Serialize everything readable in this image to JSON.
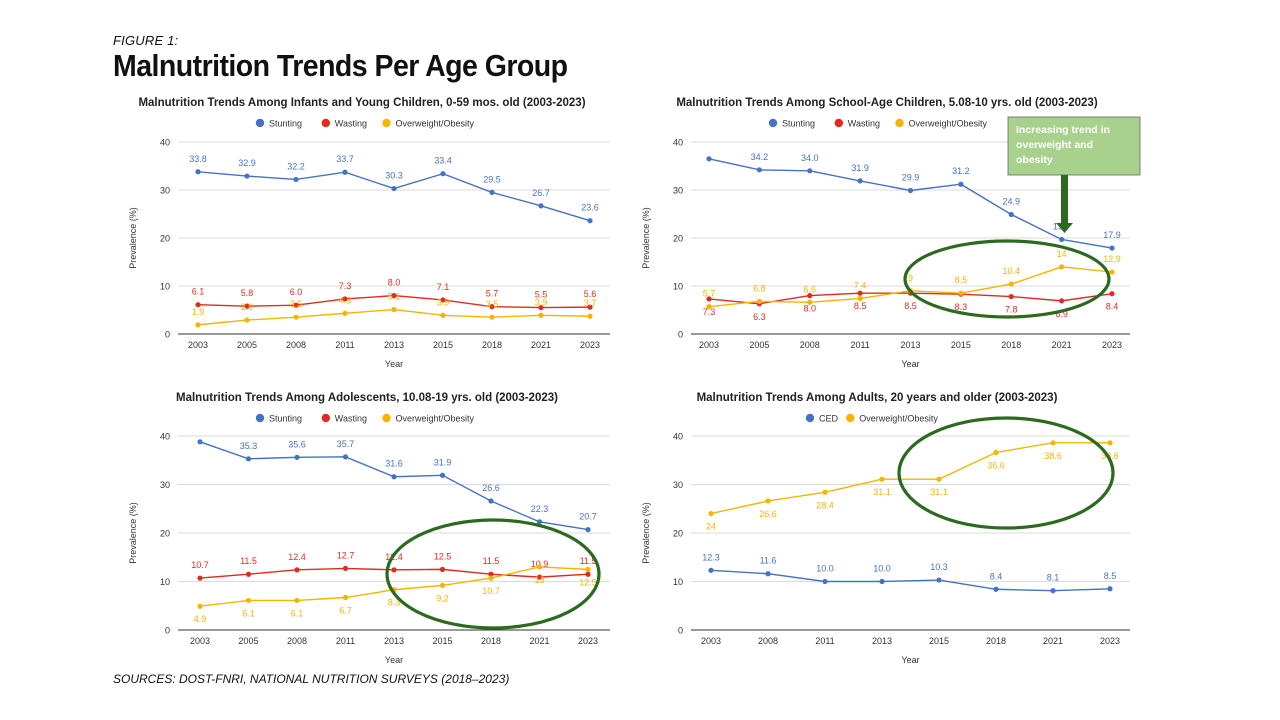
{
  "figure": {
    "label": "FIGURE 1:",
    "title": "Malnutrition Trends Per Age Group",
    "sources": "SOURCES: DOST-FNRI, NATIONAL NUTRITION SURVEYS (2018–2023)"
  },
  "colors": {
    "blue": "#4472c4",
    "red": "#e02b20",
    "yellow": "#f5b400",
    "green": "#2d6a1f",
    "callout_bg": "#a9d18e"
  },
  "chart_data": [
    {
      "type": "line",
      "title": "Malnutrition Trends Among Infants and Young Children, 0-59 mos. old (2003-2023)",
      "xlabel": "Year",
      "ylabel": "Prevalence (%)",
      "categories": [
        "2003",
        "2005",
        "2008",
        "2011",
        "2013",
        "2015",
        "2018",
        "2021",
        "2023"
      ],
      "ylim": [
        0,
        40
      ],
      "yticks": [
        "0",
        "10",
        "20",
        "30",
        "40"
      ],
      "grid": true,
      "legend": "top-center",
      "series": [
        {
          "name": "Stunting",
          "color": "#4472c4",
          "values": [
            33.8,
            32.9,
            32.2,
            33.7,
            30.3,
            33.4,
            29.5,
            26.7,
            23.6
          ],
          "labels": [
            "33.8",
            "32.9",
            "32.2",
            "33.7",
            "30.3",
            "33.4",
            "29.5",
            "26.7",
            "23.6"
          ],
          "label_pos": "above"
        },
        {
          "name": "Wasting",
          "color": "#e02b20",
          "values": [
            6.1,
            5.8,
            6.0,
            7.3,
            8.0,
            7.1,
            5.7,
            5.5,
            5.6
          ],
          "labels": [
            "6.1",
            "5.8",
            "6.0",
            "7.3",
            "8.0",
            "7.1",
            "5.7",
            "5.5",
            "5.6"
          ],
          "label_pos": "above"
        },
        {
          "name": "Overweight/Obesity",
          "color": "#f5b400",
          "values": [
            1.9,
            2.9,
            3.5,
            4.3,
            5.1,
            3.9,
            3.5,
            3.9,
            3.7
          ],
          "labels": [
            "1.9",
            "2.9",
            "3.5",
            "4.3",
            "5.1",
            "3.9",
            "3.5",
            "3.9",
            "3.7"
          ],
          "label_pos": "above"
        }
      ]
    },
    {
      "type": "line",
      "title": "Malnutrition Trends Among School-Age Children, 5.08-10 yrs. old (2003-2023)",
      "xlabel": "Year",
      "ylabel": "Prevalence (%)",
      "categories": [
        "2003",
        "2005",
        "2008",
        "2011",
        "2013",
        "2015",
        "2018",
        "2021",
        "2023"
      ],
      "ylim": [
        0,
        40
      ],
      "yticks": [
        "0",
        "10",
        "20",
        "30",
        "40"
      ],
      "grid": true,
      "legend": "top-center",
      "callout": "Increasing trend in overweight and obesity",
      "series": [
        {
          "name": "Stunting",
          "color": "#4472c4",
          "values": [
            36.5,
            34.2,
            34.0,
            31.9,
            29.9,
            31.2,
            24.9,
            19.7,
            17.9
          ],
          "labels": [
            "",
            "34.2",
            "34.0",
            "31.9",
            "29.9",
            "31.2",
            "24.9",
            "19.7",
            "17.9"
          ],
          "label_pos": "above"
        },
        {
          "name": "Wasting",
          "color": "#e02b20",
          "values": [
            7.3,
            6.3,
            8.0,
            8.5,
            8.5,
            8.3,
            7.8,
            6.9,
            8.4
          ],
          "labels": [
            "7.3",
            "6.3",
            "8.0",
            "8.5",
            "8.5",
            "8.3",
            "7.8",
            "6.9",
            "8.4"
          ],
          "label_pos": "below"
        },
        {
          "name": "Overweight/Obesity",
          "color": "#f5b400",
          "values": [
            5.7,
            6.8,
            6.6,
            7.4,
            9,
            8.5,
            10.4,
            14,
            12.9
          ],
          "labels": [
            "5.7",
            "6.8",
            "6.6",
            "7.4",
            "9",
            "8.5",
            "10.4",
            "14",
            "12.9"
          ],
          "label_pos": "above"
        }
      ]
    },
    {
      "type": "line",
      "title": "Malnutrition Trends Among Adolescents, 10.08-19 yrs. old (2003-2023)",
      "xlabel": "Year",
      "ylabel": "Prevalence (%)",
      "categories": [
        "2003",
        "2005",
        "2008",
        "2011",
        "2013",
        "2015",
        "2018",
        "2021",
        "2023"
      ],
      "ylim": [
        0,
        40
      ],
      "yticks": [
        "0",
        "10",
        "20",
        "30",
        "40"
      ],
      "grid": true,
      "legend": "top-center",
      "series": [
        {
          "name": "Stunting",
          "color": "#4472c4",
          "values": [
            38.8,
            35.3,
            35.6,
            35.7,
            31.6,
            31.9,
            26.6,
            22.3,
            20.7
          ],
          "labels": [
            "",
            "35.3",
            "35.6",
            "35.7",
            "31.6",
            "31.9",
            "26.6",
            "22.3",
            "20.7"
          ],
          "label_pos": "above"
        },
        {
          "name": "Wasting",
          "color": "#e02b20",
          "values": [
            10.7,
            11.5,
            12.4,
            12.7,
            12.4,
            12.5,
            11.5,
            10.9,
            11.5
          ],
          "labels": [
            "10.7",
            "11.5",
            "12.4",
            "12.7",
            "12.4",
            "12.5",
            "11.5",
            "10.9",
            "11.5"
          ],
          "label_pos": "above"
        },
        {
          "name": "Overweight/Obesity",
          "color": "#f5b400",
          "values": [
            4.9,
            6.1,
            6.1,
            6.7,
            8.3,
            9.2,
            10.7,
            13,
            12.5
          ],
          "labels": [
            "4.9",
            "6.1",
            "6.1",
            "6.7",
            "8.3",
            "9.2",
            "10.7",
            "13",
            "12.5"
          ],
          "label_pos": "below"
        }
      ]
    },
    {
      "type": "line",
      "title": "Malnutrition Trends Among Adults, 20 years and older (2003-2023)",
      "xlabel": "Year",
      "ylabel": "Prevalence (%)",
      "categories": [
        "2003",
        "2008",
        "2011",
        "2013",
        "2015",
        "2018",
        "2021",
        "2023"
      ],
      "ylim": [
        0,
        40
      ],
      "yticks": [
        "0",
        "10",
        "20",
        "30",
        "40"
      ],
      "grid": true,
      "legend": "top-center",
      "series": [
        {
          "name": "CED",
          "color": "#4472c4",
          "values": [
            12.3,
            11.6,
            10.0,
            10.0,
            10.3,
            8.4,
            8.1,
            8.5
          ],
          "labels": [
            "12.3",
            "11.6",
            "10.0",
            "10.0",
            "10.3",
            "8.4",
            "8.1",
            "8.5"
          ],
          "label_pos": "above"
        },
        {
          "name": "Overweight/Obesity",
          "color": "#f5b400",
          "values": [
            24,
            26.6,
            28.4,
            31.1,
            31.1,
            36.6,
            38.6,
            38.6
          ],
          "labels": [
            "24",
            "26.6",
            "28.4",
            "31.1",
            "31.1",
            "36.6",
            "38.6",
            "38.6"
          ],
          "label_pos": "below"
        }
      ]
    }
  ]
}
